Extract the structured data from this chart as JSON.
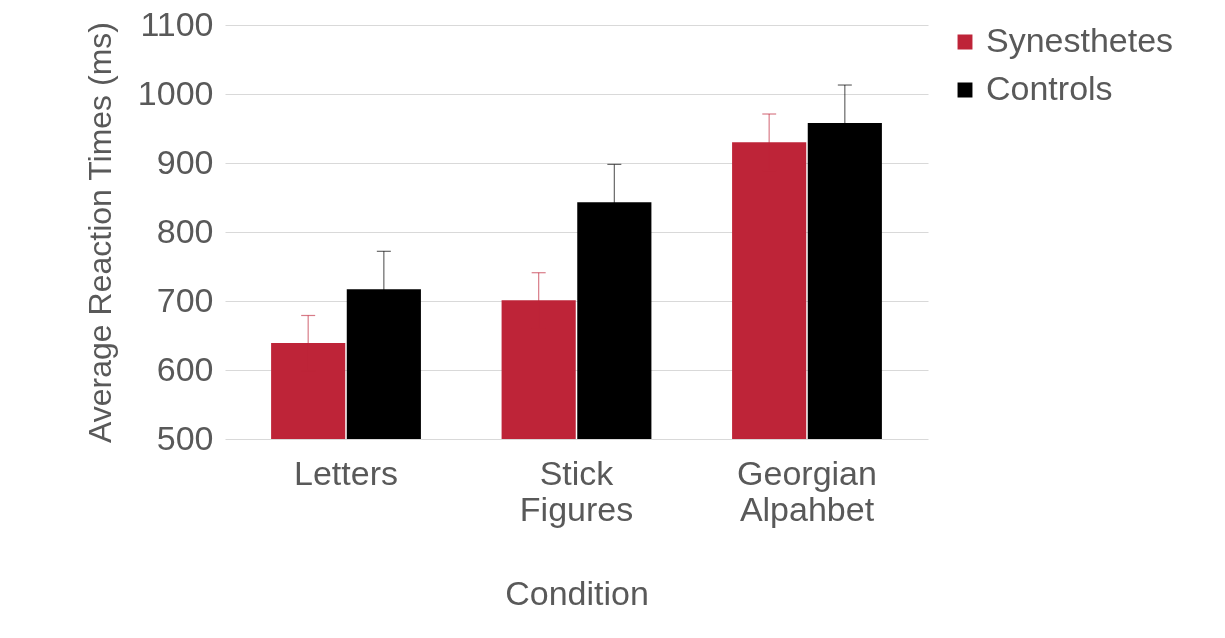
{
  "chart_data": {
    "type": "bar",
    "xlabel": "Condition",
    "ylabel": "Average Reaction Times (ms)",
    "categories": [
      "Letters",
      "Stick Figures",
      "Georgian Alpahbet"
    ],
    "series": [
      {
        "name": "Synesthetes",
        "color": "#be2438",
        "values": [
          639,
          701,
          930
        ],
        "errors": [
          40,
          40,
          41
        ]
      },
      {
        "name": "Controls",
        "color": "#000000",
        "values": [
          717,
          843,
          958
        ],
        "errors": [
          55,
          55,
          55
        ]
      }
    ],
    "ylim": [
      500,
      1100
    ],
    "yticks": [
      500,
      600,
      700,
      800,
      900,
      1000,
      1100
    ],
    "grid": "y",
    "legend": "top right"
  }
}
